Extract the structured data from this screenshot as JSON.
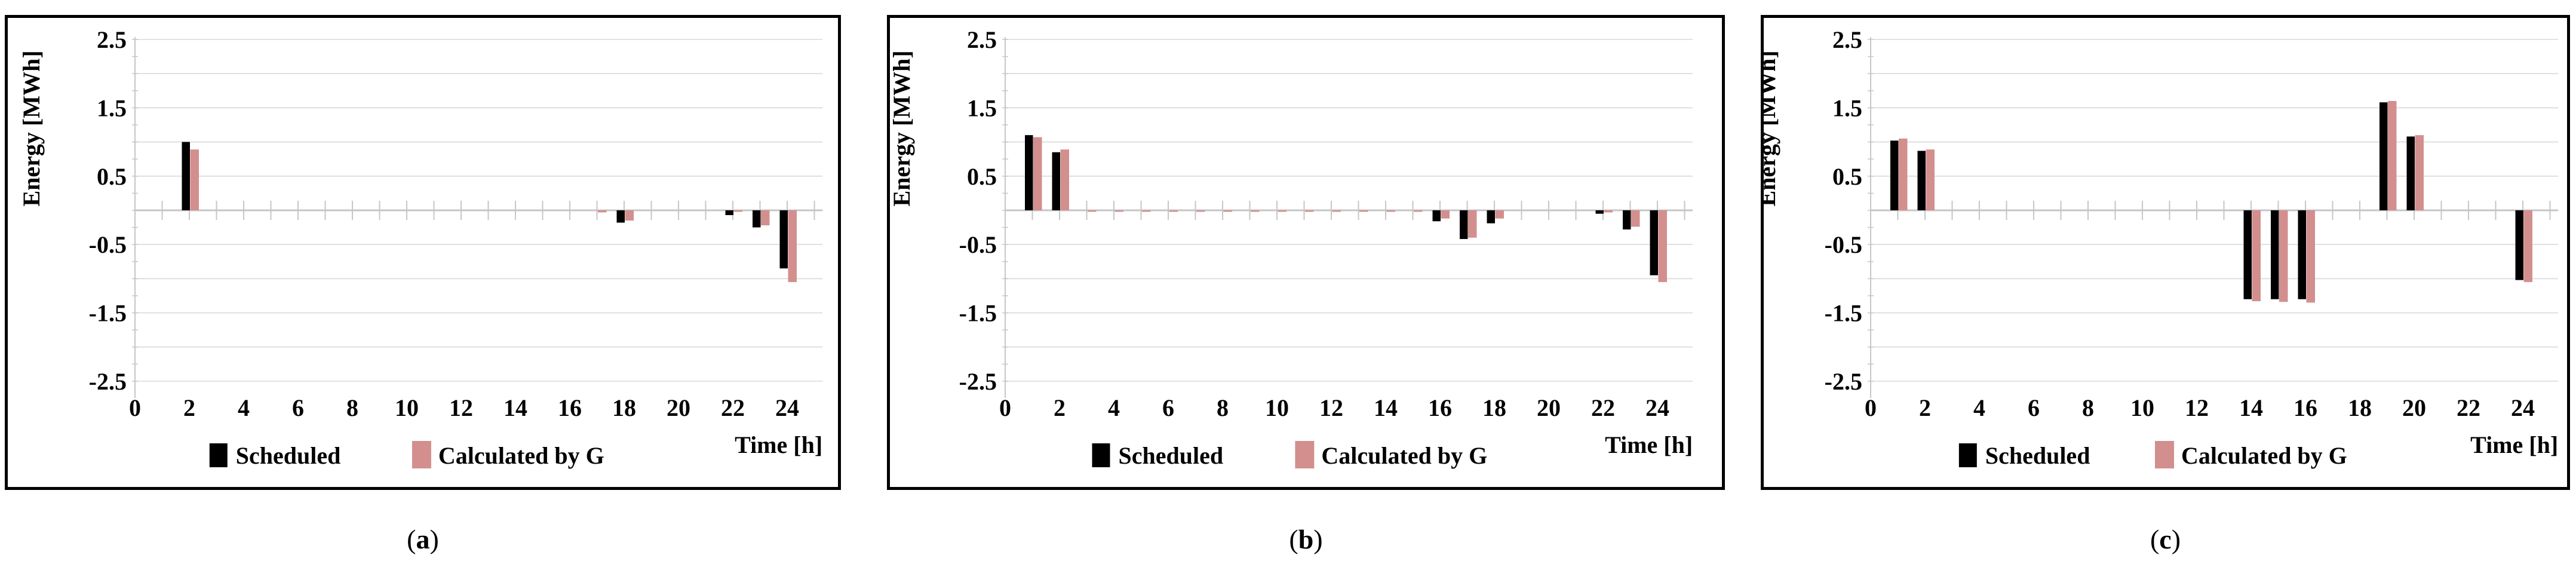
{
  "page": {
    "background": "#ffffff"
  },
  "colors": {
    "scheduled": "#000000",
    "calculated_by_g": "#D28F8E",
    "gridline": "#D9D9D9",
    "axis": "#C6C6C6",
    "panel_border": "#000000",
    "text": "#000000"
  },
  "legend": {
    "items": [
      {
        "label": "Scheduled",
        "color": "#000000"
      },
      {
        "label": "Calculated by G",
        "color": "#D28F8E"
      }
    ],
    "position": "bottom"
  },
  "axes": {
    "y_title": "Energy [MWh]",
    "x_title": "Time [h]",
    "y_tick_labels": [
      "2.5",
      "1.5",
      "0.5",
      "-0.5",
      "-1.5",
      "-2.5"
    ],
    "x_tick_labels": [
      "0",
      "2",
      "4",
      "6",
      "8",
      "10",
      "12",
      "14",
      "16",
      "18",
      "20",
      "22",
      "24"
    ]
  },
  "captions": [
    {
      "open": "(",
      "letter": "a",
      "close": ")"
    },
    {
      "open": "(",
      "letter": "b",
      "close": ")"
    },
    {
      "open": "(",
      "letter": "c",
      "close": ")"
    }
  ],
  "chart_data": [
    {
      "type": "bar",
      "panel": "a",
      "xlabel": "Time [h]",
      "ylabel": "Energy [MWh]",
      "ylim": [
        -2.5,
        2.5
      ],
      "grid_step": 0.5,
      "x": [
        1,
        2,
        3,
        4,
        5,
        6,
        7,
        8,
        9,
        10,
        11,
        12,
        13,
        14,
        15,
        16,
        17,
        18,
        19,
        20,
        21,
        22,
        23,
        24
      ],
      "x_axis_label_hours": [
        0,
        2,
        4,
        6,
        8,
        10,
        12,
        14,
        16,
        18,
        20,
        22,
        24
      ],
      "legend_position": "bottom",
      "series": [
        {
          "name": "Scheduled",
          "values": [
            0,
            1.0,
            0,
            0,
            0,
            0,
            0,
            0,
            0,
            0,
            0,
            0,
            0,
            0,
            0,
            0,
            0,
            -0.18,
            0,
            0,
            0,
            -0.07,
            -0.25,
            -0.85
          ]
        },
        {
          "name": "Calculated by G",
          "values": [
            0,
            0.89,
            0,
            0,
            0,
            0,
            0,
            0,
            0,
            0,
            0,
            0,
            0,
            0,
            0,
            0,
            -0.03,
            -0.15,
            0,
            0,
            0,
            -0.02,
            -0.22,
            -1.05
          ]
        }
      ]
    },
    {
      "type": "bar",
      "panel": "b",
      "xlabel": "Time [h]",
      "ylabel": "Energy [MWh]",
      "ylim": [
        -2.5,
        2.5
      ],
      "grid_step": 0.5,
      "x": [
        1,
        2,
        3,
        4,
        5,
        6,
        7,
        8,
        9,
        10,
        11,
        12,
        13,
        14,
        15,
        16,
        17,
        18,
        19,
        20,
        21,
        22,
        23,
        24
      ],
      "x_axis_label_hours": [
        0,
        2,
        4,
        6,
        8,
        10,
        12,
        14,
        16,
        18,
        20,
        22,
        24
      ],
      "legend_position": "bottom",
      "series": [
        {
          "name": "Scheduled",
          "values": [
            1.1,
            0.85,
            0,
            0,
            0,
            0,
            0,
            0,
            0,
            0,
            0,
            0,
            0,
            0,
            0,
            -0.16,
            -0.42,
            -0.19,
            0,
            0,
            0,
            -0.05,
            -0.28,
            -0.95
          ]
        },
        {
          "name": "Calculated by G",
          "values": [
            1.07,
            0.89,
            -0.02,
            -0.02,
            -0.02,
            -0.02,
            -0.02,
            -0.02,
            -0.02,
            -0.02,
            -0.02,
            -0.02,
            -0.02,
            -0.02,
            -0.02,
            -0.12,
            -0.4,
            -0.12,
            0,
            0,
            0,
            -0.03,
            -0.24,
            -1.05
          ]
        }
      ]
    },
    {
      "type": "bar",
      "panel": "c",
      "xlabel": "Time [h]",
      "ylabel": "Energy [MWh]",
      "ylim": [
        -2.5,
        2.5
      ],
      "grid_step": 0.5,
      "x": [
        1,
        2,
        3,
        4,
        5,
        6,
        7,
        8,
        9,
        10,
        11,
        12,
        13,
        14,
        15,
        16,
        17,
        18,
        19,
        20,
        21,
        22,
        23,
        24
      ],
      "x_axis_label_hours": [
        0,
        2,
        4,
        6,
        8,
        10,
        12,
        14,
        16,
        18,
        20,
        22,
        24
      ],
      "legend_position": "bottom",
      "series": [
        {
          "name": "Scheduled",
          "values": [
            1.02,
            0.87,
            0,
            0,
            0,
            0,
            0,
            0,
            0,
            0,
            0,
            0,
            0,
            -1.3,
            -1.3,
            -1.3,
            0,
            0,
            1.58,
            1.08,
            0,
            0,
            0,
            -1.02
          ]
        },
        {
          "name": "Calculated by G",
          "values": [
            1.05,
            0.89,
            0,
            0,
            0,
            0,
            0,
            0,
            0,
            0,
            0,
            0,
            0,
            -1.33,
            -1.34,
            -1.35,
            0,
            0,
            1.6,
            1.1,
            0,
            0,
            0,
            -1.05
          ]
        }
      ]
    }
  ]
}
